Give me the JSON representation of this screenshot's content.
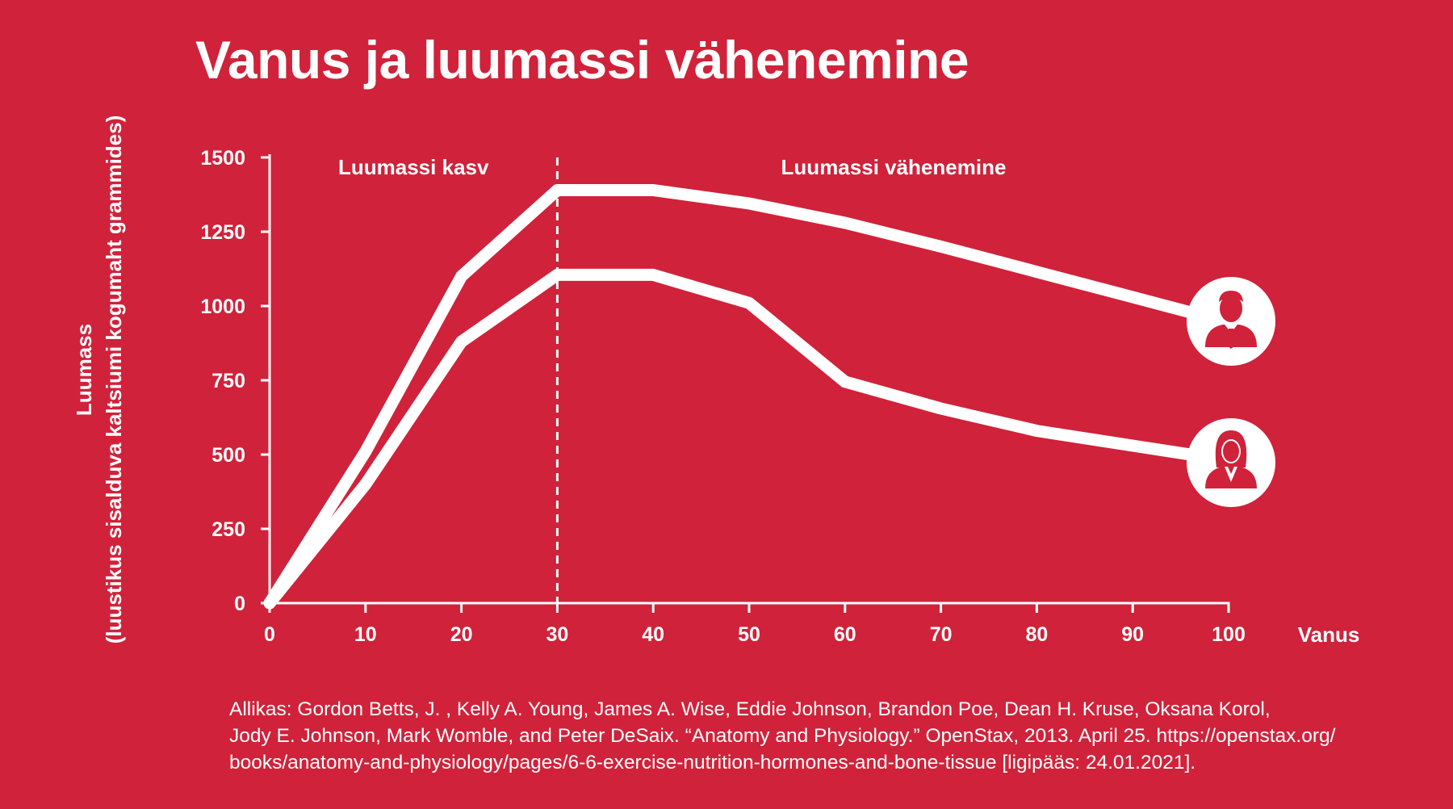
{
  "chart_data": {
    "type": "line",
    "title": "Vanus ja luumassi vähenemine",
    "xlabel": "Vanus",
    "ylabel": "Luumass",
    "ylabel_sub": "(luustikus sisalduva kaltsiumi kogumaht grammides)",
    "xlim": [
      0,
      100
    ],
    "ylim": [
      0,
      1500
    ],
    "x_ticks": [
      "0",
      "10",
      "20",
      "30",
      "40",
      "50",
      "60",
      "70",
      "80",
      "90",
      "100"
    ],
    "y_ticks": [
      "0",
      "250",
      "500",
      "750",
      "1000",
      "1250",
      "1500"
    ],
    "x_tick_values": [
      0,
      10,
      20,
      30,
      40,
      50,
      60,
      70,
      80,
      90,
      100
    ],
    "y_tick_values": [
      0,
      250,
      500,
      750,
      1000,
      1250,
      1500
    ],
    "annotations": [
      {
        "text": "Luumassi kasv"
      },
      {
        "text": "Luumassi vähenemine"
      }
    ],
    "divider_x": 30,
    "grid": false,
    "series": [
      {
        "icon": "man-icon",
        "x": [
          0,
          10,
          20,
          30,
          40,
          50,
          60,
          70,
          80,
          90,
          97
        ],
        "values": [
          0,
          510,
          1100,
          1390,
          1390,
          1345,
          1280,
          1200,
          1115,
          1030,
          970
        ]
      },
      {
        "icon": "woman-icon",
        "x": [
          0,
          10,
          20,
          30,
          40,
          50,
          60,
          70,
          80,
          90,
          97
        ],
        "values": [
          0,
          400,
          880,
          1105,
          1105,
          1010,
          745,
          655,
          580,
          530,
          495
        ]
      }
    ],
    "line_color": "#ffffff",
    "background_color": "#d0223a"
  },
  "source": {
    "lines": [
      "Allikas: Gordon Betts, J. , Kelly A. Young, James A. Wise, Eddie Johnson, Brandon Poe, Dean H. Kruse, Oksana Korol,",
      "Jody E. Johnson, Mark Womble, and Peter DeSaix. “Anatomy and Physiology.” OpenStax, 2013. April 25. https://openstax.org/",
      "books/anatomy-and-physiology/pages/6-6-exercise-nutrition-hormones-and-bone-tissue [ligipääs: 24.01.2021]."
    ]
  }
}
